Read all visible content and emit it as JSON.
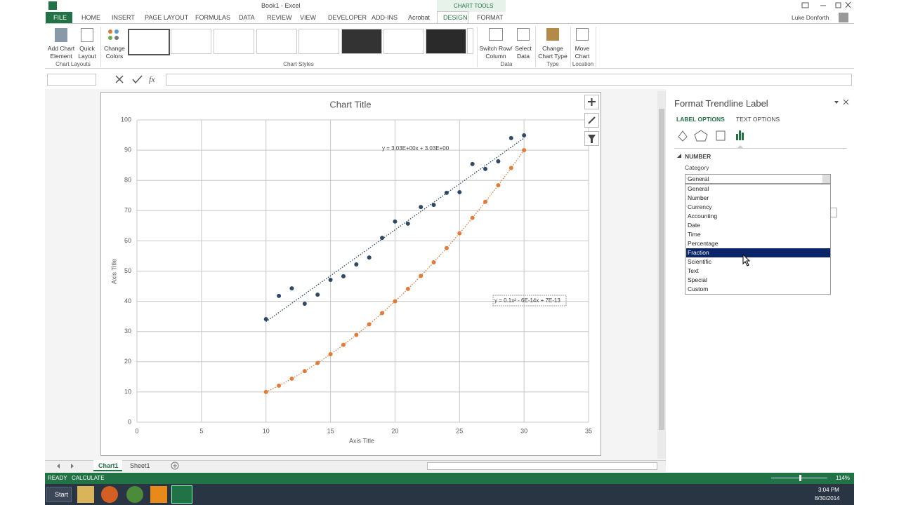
{
  "window": {
    "title": "Book1 - Excel",
    "context_tab": "CHART TOOLS",
    "user": "Luke Donforth"
  },
  "ribbon": {
    "tabs": [
      "FILE",
      "HOME",
      "INSERT",
      "PAGE LAYOUT",
      "FORMULAS",
      "DATA",
      "REVIEW",
      "VIEW",
      "DEVELOPER",
      "ADD-INS",
      "Acrobat",
      "DESIGN",
      "FORMAT"
    ],
    "groups": [
      {
        "label": "Chart Layouts",
        "buttons": [
          "Add Chart Element",
          "Quick Layout"
        ]
      },
      {
        "label": "Chart Styles",
        "buttons": [
          "Change Colors"
        ]
      },
      {
        "label": "Data",
        "buttons": [
          "Switch Row/ Column",
          "Select Data"
        ]
      },
      {
        "label": "Type",
        "buttons": [
          "Change Chart Type"
        ]
      },
      {
        "label": "Location",
        "buttons": [
          "Move Chart"
        ]
      }
    ]
  },
  "formula_bar": {
    "function_button": "fx"
  },
  "chart_data": {
    "type": "scatter",
    "title": "Chart Title",
    "x_label": "Axis Title",
    "y_label": "Axis Title",
    "x": [
      10,
      11,
      12,
      13,
      14,
      15,
      16,
      17,
      18,
      19,
      20,
      21,
      22,
      23,
      24,
      25,
      26,
      27,
      28,
      29,
      30
    ],
    "series": [
      {
        "color": "#2f4a66",
        "trendline": "linear",
        "values": [
          34.1,
          41.8,
          44.3,
          39.2,
          42.2,
          47.1,
          48.3,
          52.2,
          54.5,
          61.0,
          66.4,
          65.7,
          71.2,
          71.9,
          75.9,
          76.1,
          85.4,
          83.8,
          86.3,
          94.0,
          94.9
        ]
      },
      {
        "color": "#e07b39",
        "trendline": "polynomial",
        "values": [
          10,
          12.1,
          14.4,
          16.9,
          19.6,
          22.5,
          25.6,
          28.9,
          32.4,
          36.1,
          40,
          44.1,
          48.4,
          52.9,
          57.6,
          62.5,
          67.6,
          72.9,
          78.4,
          84.1,
          90
        ]
      }
    ],
    "xlim": [
      0,
      35
    ],
    "xticks": [
      0,
      5,
      10,
      15,
      20,
      25,
      30,
      35
    ],
    "ylim": [
      0,
      100
    ],
    "yticks": [
      0,
      10,
      20,
      30,
      40,
      50,
      60,
      70,
      80,
      90,
      100
    ],
    "grid": true,
    "annotations": [
      "y = 3.03E+00x + 3.03E+00",
      "y = 0.1x² - 6E-14x + 7E-13"
    ]
  },
  "sheets": [
    "Chart1",
    "Sheet1"
  ],
  "format_pane": {
    "title": "Format Trendline Label",
    "tabs": [
      "LABEL OPTIONS",
      "TEXT OPTIONS"
    ],
    "section": "NUMBER",
    "field_label": "Category",
    "selected": "General",
    "options": [
      "General",
      "Number",
      "Currency",
      "Accounting",
      "Date",
      "Time",
      "Percentage",
      "Fraction",
      "Scientific",
      "Text",
      "Special",
      "Custom"
    ]
  },
  "status_bar": {
    "mode": "READY",
    "calc": "CALCULATE",
    "zoom": "114%"
  },
  "taskbar": {
    "start": "Start",
    "time": "3:04 PM",
    "date": "8/30/2014"
  }
}
